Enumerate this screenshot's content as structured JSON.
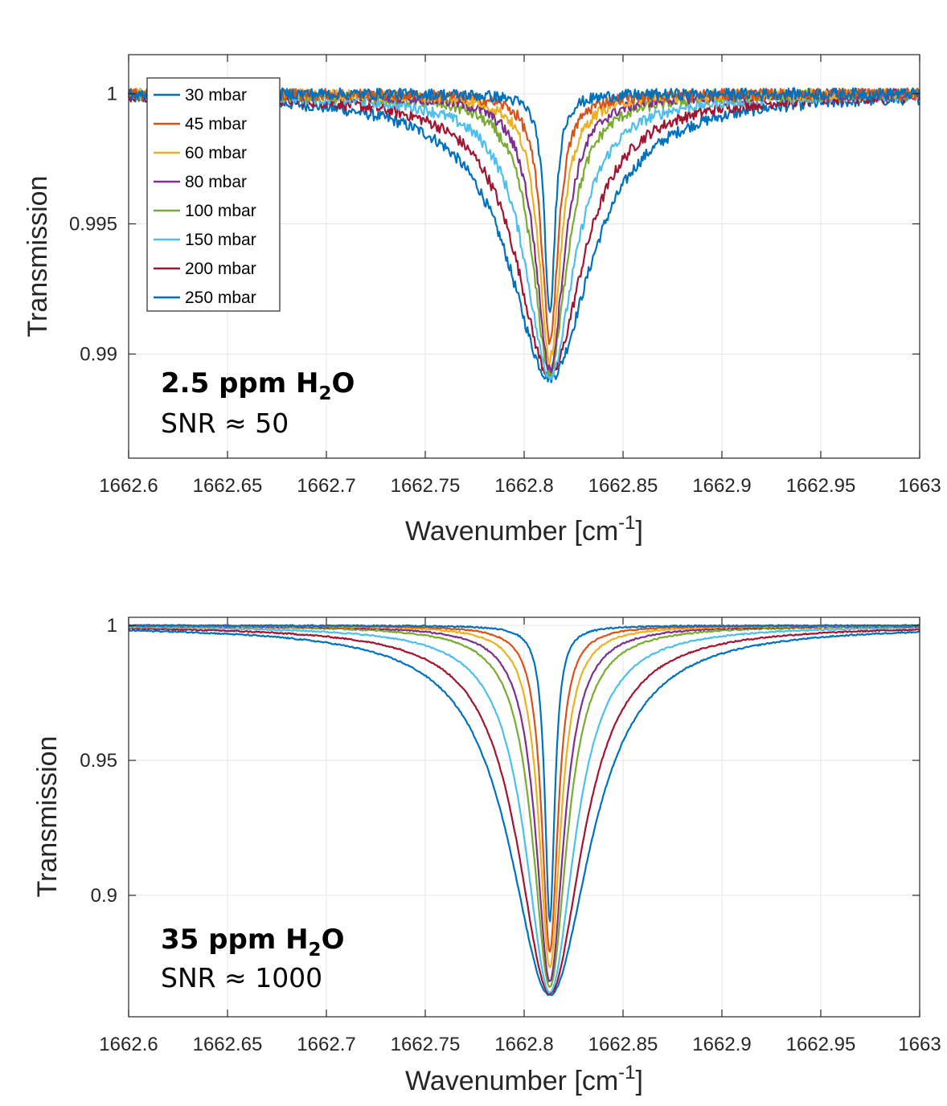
{
  "chart_data": [
    {
      "type": "line",
      "title": "",
      "xlabel": "Wavenumber [cm",
      "xlabel_sup": "-1",
      "xlabel_end": "]",
      "ylabel": "Transmission",
      "xlim": [
        1662.6,
        1663
      ],
      "ylim": [
        0.986,
        1.0015
      ],
      "grid": true,
      "legend_position": "top-left",
      "xticks": [
        "1662.6",
        "1662.65",
        "1662.7",
        "1662.75",
        "1662.8",
        "1662.85",
        "1662.9",
        "1662.95",
        "1663"
      ],
      "yticks": [
        {
          "value": 0.99,
          "label": "0.99"
        },
        {
          "value": 0.995,
          "label": "0.995"
        },
        {
          "value": 1.0,
          "label": "1"
        }
      ],
      "line_center": 1662.813,
      "noise_amplitude": 0.00022,
      "annotation": {
        "line1_main": "2.5 ppm H",
        "line1_sub": "2",
        "line1_end": "O",
        "line2": "SNR ≈ 50"
      },
      "series": [
        {
          "name": "30 mbar",
          "color": "#0072BD",
          "min_transmission": 0.9914,
          "hwhm": 0.0032
        },
        {
          "name": "45 mbar",
          "color": "#D95319",
          "min_transmission": 0.9905,
          "hwhm": 0.0052
        },
        {
          "name": "60 mbar",
          "color": "#EDB120",
          "min_transmission": 0.9898,
          "hwhm": 0.0068
        },
        {
          "name": "80 mbar",
          "color": "#7E2F8E",
          "min_transmission": 0.9894,
          "hwhm": 0.0088
        },
        {
          "name": "100 mbar",
          "color": "#77AC30",
          "min_transmission": 0.9893,
          "hwhm": 0.0108
        },
        {
          "name": "150 mbar",
          "color": "#4DBEEE",
          "min_transmission": 0.9892,
          "hwhm": 0.0155
        },
        {
          "name": "200 mbar",
          "color": "#A2142F",
          "min_transmission": 0.9892,
          "hwhm": 0.0205
        },
        {
          "name": "250 mbar",
          "color": "#0072BD",
          "min_transmission": 0.9891,
          "hwhm": 0.0255
        }
      ]
    },
    {
      "type": "line",
      "title": "",
      "xlabel": "Wavenumber [cm",
      "xlabel_sup": "-1",
      "xlabel_end": "]",
      "ylabel": "Transmission",
      "xlim": [
        1662.6,
        1663
      ],
      "ylim": [
        0.855,
        1.003
      ],
      "grid": true,
      "legend_position": "none",
      "xticks": [
        "1662.6",
        "1662.65",
        "1662.7",
        "1662.75",
        "1662.8",
        "1662.85",
        "1662.9",
        "1662.95",
        "1663"
      ],
      "yticks": [
        {
          "value": 0.9,
          "label": "0.9"
        },
        {
          "value": 0.95,
          "label": "0.95"
        },
        {
          "value": 1.0,
          "label": "1"
        }
      ],
      "line_center": 1662.813,
      "noise_amplitude": 0.00025,
      "annotation": {
        "line1_main": "35 ppm H",
        "line1_sub": "2",
        "line1_end": "O",
        "line2": "SNR ≈ 1000"
      },
      "series": [
        {
          "name": "30 mbar",
          "color": "#0072BD",
          "min_transmission": 0.89,
          "hwhm": 0.003
        },
        {
          "name": "45 mbar",
          "color": "#D95319",
          "min_transmission": 0.879,
          "hwhm": 0.005
        },
        {
          "name": "60 mbar",
          "color": "#EDB120",
          "min_transmission": 0.873,
          "hwhm": 0.0066
        },
        {
          "name": "80 mbar",
          "color": "#7E2F8E",
          "min_transmission": 0.868,
          "hwhm": 0.0086
        },
        {
          "name": "100 mbar",
          "color": "#77AC30",
          "min_transmission": 0.866,
          "hwhm": 0.0106
        },
        {
          "name": "150 mbar",
          "color": "#4DBEEE",
          "min_transmission": 0.864,
          "hwhm": 0.0152
        },
        {
          "name": "200 mbar",
          "color": "#A2142F",
          "min_transmission": 0.8635,
          "hwhm": 0.02
        },
        {
          "name": "250 mbar",
          "color": "#0072BD",
          "min_transmission": 0.863,
          "hwhm": 0.025
        }
      ]
    }
  ]
}
